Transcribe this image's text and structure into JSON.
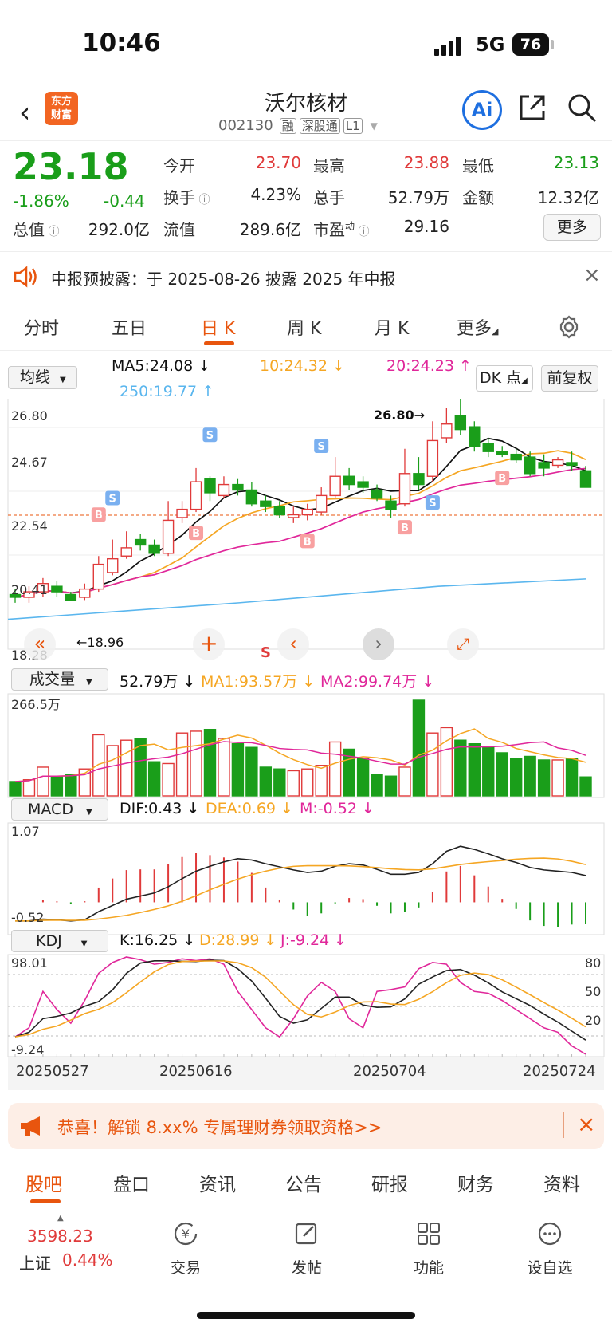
{
  "status": {
    "time": "10:46",
    "network": "5G",
    "battery": "76"
  },
  "header": {
    "logo_line1": "东方",
    "logo_line2": "财富",
    "stock_name": "沃尔核材",
    "code": "002130",
    "tags": [
      "融",
      "深股通",
      "L1"
    ],
    "ai_label": "Ai"
  },
  "quote": {
    "price": "23.18",
    "pct": "-1.86%",
    "chg": "-0.44",
    "open_label": "今开",
    "open": "23.70",
    "high_label": "最高",
    "high": "23.88",
    "low_label": "最低",
    "low": "23.13",
    "turn_label": "换手",
    "turn": "4.23%",
    "vol_label": "总手",
    "vol": "52.79万",
    "amt_label": "金额",
    "amt": "12.32亿",
    "mcap_label": "总值",
    "mcap": "292.0亿",
    "float_label": "流值",
    "float": "289.6亿",
    "pe_label": "市盈",
    "pe_sup": "动",
    "pe": "29.16",
    "more": "更多"
  },
  "notice": {
    "text": "中报预披露：于 2025-08-26 披露 2025 年中报"
  },
  "tabs": [
    "分时",
    "五日",
    "日 K",
    "周 K",
    "月 K",
    "更多"
  ],
  "kline": {
    "ma_select": "均线",
    "ma5": "MA5:24.08 ↓",
    "ma10": "10:24.32 ↓",
    "ma20": "20:24.23 ↑",
    "ma250": "250:19.77 ↑",
    "dk": "DK 点",
    "fq": "前复权",
    "y_labels": [
      "26.80",
      "24.67",
      "22.54",
      "20.41",
      "18.28"
    ],
    "max_label": "26.80→",
    "min_label": "←18.96",
    "s_label": "S",
    "colors": {
      "up": "#e03a3a",
      "down": "#1a9e1a",
      "ma5": "#111111",
      "ma10": "#f5a623",
      "ma20": "#e0279a",
      "ma250": "#5ab6ee"
    }
  },
  "volume": {
    "select": "成交量",
    "vol": "52.79万 ↓",
    "ma1": "MA1:93.57万 ↓",
    "ma2": "MA2:99.74万 ↓",
    "max": "266.5万"
  },
  "macd": {
    "select": "MACD",
    "dif": "DIF:0.43 ↓",
    "dea": "DEA:0.69 ↓",
    "m": "M:-0.52 ↓",
    "top": "1.07",
    "bottom": "-0.52"
  },
  "kdj": {
    "select": "KDJ",
    "k": "K:16.25 ↓",
    "d": "D:28.99 ↓",
    "j": "J:-9.24 ↓",
    "top": "98.01",
    "bottom": "-9.24",
    "r80": "80",
    "r50": "50",
    "r20": "20"
  },
  "dates": [
    "20250527",
    "20250616",
    "20250704",
    "20250724"
  ],
  "chart_data": {
    "type": "candlestick",
    "x": [
      "20250527",
      "20250616",
      "20250704",
      "20250724"
    ],
    "y_range": [
      18.28,
      26.8
    ],
    "last_close": 23.18,
    "high_mark": 26.8,
    "low_mark": 18.96
  },
  "promo": {
    "text": "恭喜！解锁 8.xx% 专属理财券领取资格>>"
  },
  "bottom_tabs": [
    "股吧",
    "盘口",
    "资讯",
    "公告",
    "研报",
    "财务",
    "资料"
  ],
  "footer": {
    "index_value": "3598.23",
    "index_name": "上证",
    "index_pct": "0.44%",
    "items": [
      "交易",
      "发帖",
      "功能",
      "设自选"
    ]
  }
}
